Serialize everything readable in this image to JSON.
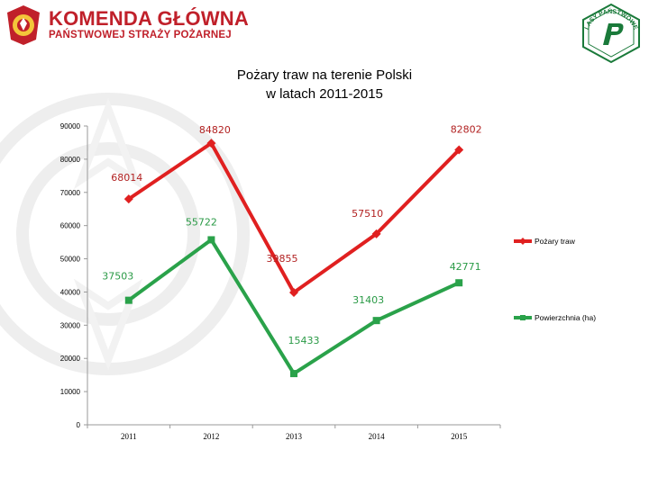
{
  "header": {
    "org_name": "KOMENDA GŁÓWNA",
    "org_sub": "PAŃSTWOWEJ STRAŻY POŻARNEJ",
    "partner_logo_text": "LASY PAŃSTWOWE",
    "brand_color": "#c0202a",
    "partner_color": "#1a7a3a"
  },
  "chart_data": {
    "type": "line",
    "title": "Pożary traw na terenie Polski",
    "subtitle": "w latach 2011-2015",
    "categories": [
      "2011",
      "2012",
      "2013",
      "2014",
      "2015"
    ],
    "y_ticks": [
      "0",
      "10000",
      "20000",
      "30000",
      "40000",
      "50000",
      "60000",
      "70000",
      "80000",
      "90000"
    ],
    "ylim": [
      0,
      90000
    ],
    "grid": false,
    "legend_position": "right",
    "series": [
      {
        "name": "Pożary traw",
        "color": "#e02020",
        "marker": "diamond",
        "values": [
          68014,
          84820,
          39855,
          57510,
          82802
        ],
        "labels": [
          "68014",
          "84820",
          "39855",
          "57510",
          "82802"
        ]
      },
      {
        "name": "Powierzchnia (ha)",
        "color": "#2aa24a",
        "marker": "square",
        "values": [
          37503,
          55722,
          15433,
          31403,
          42771
        ],
        "labels": [
          "37503",
          "55722",
          "15433",
          "31403",
          "42771"
        ]
      }
    ]
  }
}
